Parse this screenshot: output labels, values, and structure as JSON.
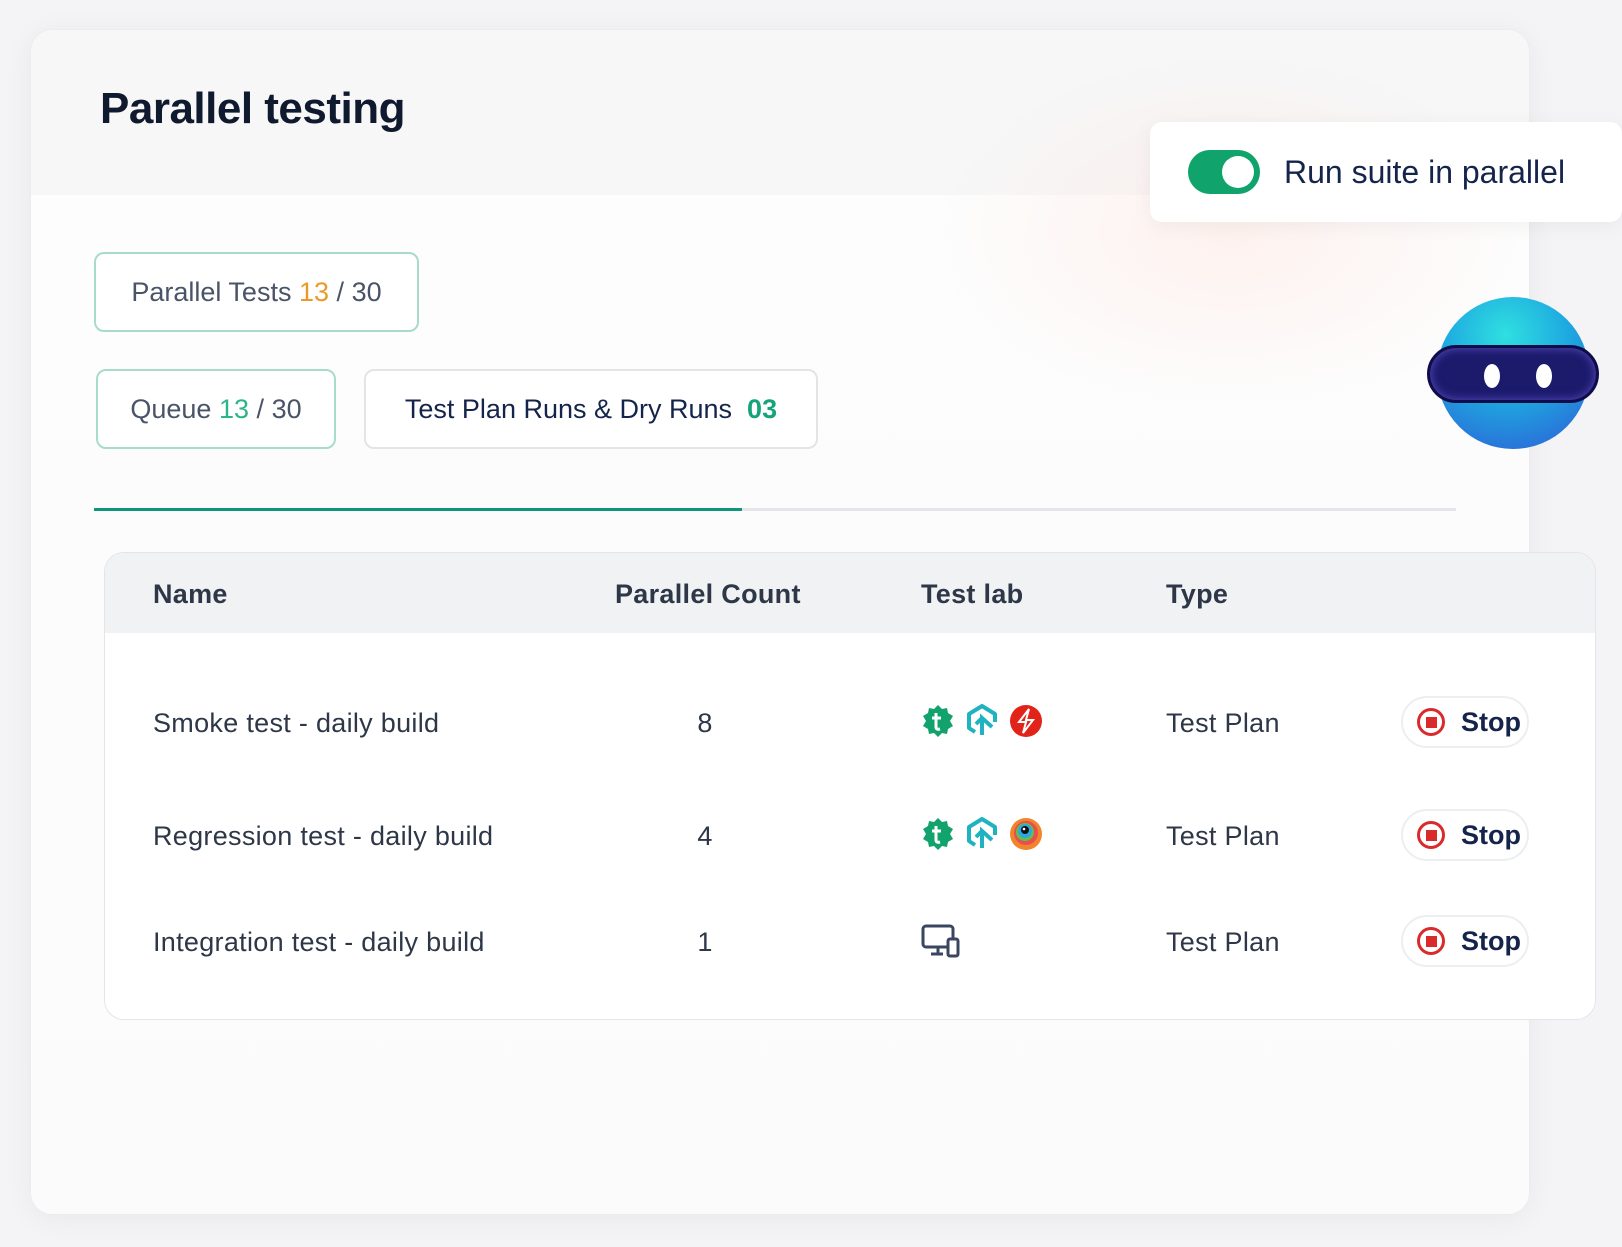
{
  "title": "Parallel testing",
  "toggle": {
    "label": "Run suite in parallel",
    "on": true
  },
  "stats": {
    "parallel_tests": {
      "label": "Parallel Tests",
      "used": "13",
      "sep": "/",
      "total": "30"
    },
    "queue": {
      "label": "Queue",
      "used": "13",
      "sep": "/",
      "total": "30"
    },
    "runs": {
      "label": "Test Plan Runs & Dry Runs",
      "count": "03"
    }
  },
  "progress_fraction": 0.476,
  "colors": {
    "accent": "#10a36c",
    "warning": "#e89a2a",
    "stop": "#d92b2b"
  },
  "table": {
    "headers": [
      "Name",
      "Parallel Count",
      "Test lab",
      "Type"
    ],
    "rows": [
      {
        "name": "Smoke test - daily build",
        "count": "8",
        "labs": [
          "testsigma-lab-icon",
          "lambdatest-icon",
          "sauce-labs-icon"
        ],
        "type": "Test Plan",
        "action": "Stop"
      },
      {
        "name": "Regression test - daily build",
        "count": "4",
        "labs": [
          "testsigma-lab-icon",
          "lambdatest-icon",
          "browserstack-icon"
        ],
        "type": "Test Plan",
        "action": "Stop"
      },
      {
        "name": "Integration test - daily build",
        "count": "1",
        "labs": [
          "local-devices-icon"
        ],
        "type": "Test Plan",
        "action": "Stop"
      }
    ]
  }
}
